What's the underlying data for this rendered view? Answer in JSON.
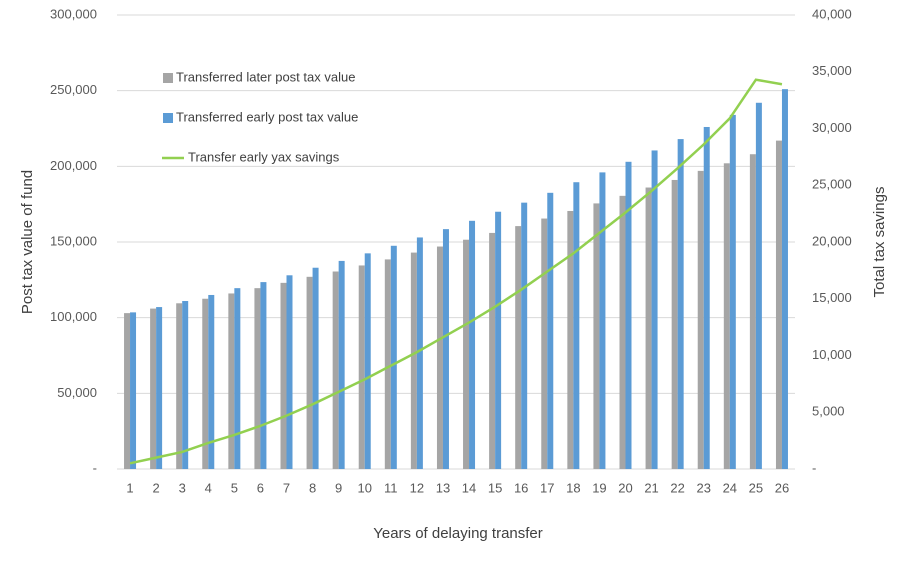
{
  "chart_data": {
    "type": "bar",
    "x_label": "Years of delaying transfer",
    "y_label": "Post tax value of fund",
    "y2_label": "Total tax savings",
    "categories": [
      "1",
      "2",
      "3",
      "4",
      "5",
      "6",
      "7",
      "8",
      "9",
      "10",
      "11",
      "12",
      "13",
      "14",
      "15",
      "16",
      "17",
      "18",
      "19",
      "20",
      "21",
      "22",
      "23",
      "24",
      "25",
      "26"
    ],
    "series": [
      {
        "name": "Transferred later post tax value",
        "color": "#a5a5a5",
        "type": "bar",
        "values": [
          103000,
          106000,
          109500,
          112500,
          116000,
          119500,
          123000,
          127000,
          130500,
          134500,
          138500,
          143000,
          147000,
          151500,
          156000,
          160500,
          165500,
          170500,
          175500,
          180500,
          186000,
          191000,
          197000,
          202000,
          208000,
          217000
        ]
      },
      {
        "name": "Transferred early post tax value",
        "color": "#5b9bd5",
        "type": "bar",
        "values": [
          103500,
          107000,
          111000,
          115000,
          119500,
          123500,
          128000,
          133000,
          137500,
          142500,
          147500,
          153000,
          158500,
          164000,
          170000,
          176000,
          182500,
          189500,
          196000,
          203000,
          210500,
          218000,
          226000,
          234000,
          242000,
          251000
        ]
      },
      {
        "name": "Transfer early yax savings",
        "color": "#92d050",
        "type": "line",
        "axis": "y2",
        "values": [
          500,
          1000,
          1500,
          2300,
          3000,
          3800,
          4700,
          5700,
          6800,
          7900,
          9100,
          10300,
          11600,
          12900,
          14300,
          15800,
          17400,
          19000,
          20800,
          22600,
          24500,
          26500,
          28600,
          30900,
          34300,
          33900
        ]
      }
    ],
    "ylim": [
      0,
      300000
    ],
    "yticks": [
      {
        "value": 0,
        "label": "-"
      },
      {
        "value": 50000,
        "label": "50,000"
      },
      {
        "value": 100000,
        "label": "100,000"
      },
      {
        "value": 150000,
        "label": "150,000"
      },
      {
        "value": 200000,
        "label": "200,000"
      },
      {
        "value": 250000,
        "label": "250,000"
      },
      {
        "value": 300000,
        "label": "300,000"
      }
    ],
    "y2lim": [
      0,
      40000
    ],
    "y2ticks": [
      {
        "value": 0,
        "label": "-"
      },
      {
        "value": 5000,
        "label": "5,000"
      },
      {
        "value": 10000,
        "label": "10,000"
      },
      {
        "value": 15000,
        "label": "15,000"
      },
      {
        "value": 20000,
        "label": "20,000"
      },
      {
        "value": 25000,
        "label": "25,000"
      },
      {
        "value": 30000,
        "label": "30,000"
      },
      {
        "value": 35000,
        "label": "35,000"
      },
      {
        "value": 40000,
        "label": "40,000"
      }
    ],
    "grid": true,
    "legend": "upper-left"
  }
}
